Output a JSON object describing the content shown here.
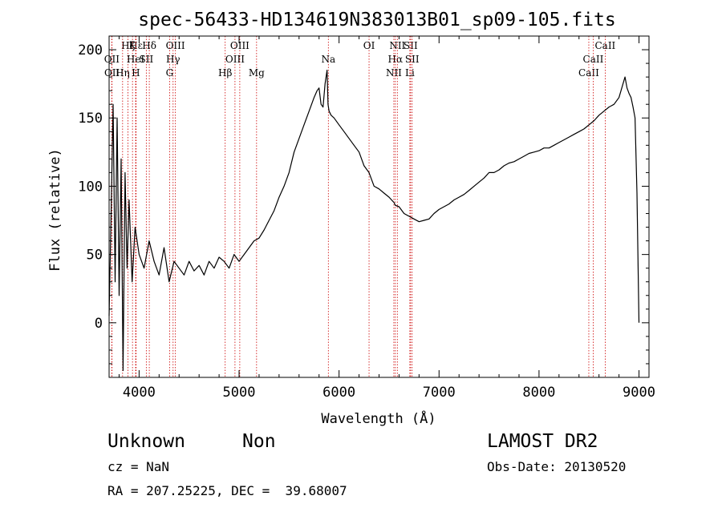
{
  "chart_data": {
    "type": "line",
    "title": "spec-56433-HD134619N383013B01_sp09-105.fits",
    "xlabel": "Wavelength (Å)",
    "ylabel": "Flux (relative)",
    "xlim": [
      3700,
      9100
    ],
    "ylim": [
      -40,
      210
    ],
    "xticks": [
      4000,
      5000,
      6000,
      7000,
      8000,
      9000
    ],
    "yticks": [
      0,
      50,
      100,
      150,
      200
    ],
    "grid": false,
    "line_color": "#000000",
    "marker_color": "#cc0000",
    "series": [
      {
        "x": [
          3700,
          3720,
          3740,
          3760,
          3780,
          3800,
          3820,
          3840,
          3860,
          3880,
          3900,
          3930,
          3960,
          4000,
          4050,
          4100,
          4150,
          4200,
          4250,
          4300,
          4350,
          4400,
          4450,
          4500,
          4550,
          4600,
          4650,
          4700,
          4750,
          4800,
          4850,
          4900,
          4950,
          5000,
          5050,
          5100,
          5150,
          5200,
          5250,
          5300,
          5350,
          5400,
          5450,
          5500,
          5550,
          5600,
          5650,
          5700,
          5750,
          5780,
          5800,
          5820,
          5840,
          5860,
          5880,
          5890,
          5900,
          5920,
          5950,
          6000,
          6050,
          6100,
          6150,
          6200,
          6250,
          6300,
          6350,
          6400,
          6450,
          6500,
          6550,
          6563,
          6600,
          6650,
          6700,
          6750,
          6800,
          6850,
          6900,
          6950,
          7000,
          7050,
          7100,
          7150,
          7200,
          7250,
          7300,
          7350,
          7400,
          7450,
          7500,
          7550,
          7600,
          7650,
          7700,
          7750,
          7800,
          7850,
          7900,
          7950,
          8000,
          8050,
          8100,
          8150,
          8200,
          8250,
          8300,
          8350,
          8400,
          8450,
          8500,
          8550,
          8600,
          8650,
          8700,
          8750,
          8800,
          8820,
          8840,
          8860,
          8880,
          8900,
          8920,
          8940,
          8960,
          8980,
          9000
        ],
        "y": [
          5,
          80,
          160,
          30,
          150,
          20,
          120,
          -35,
          110,
          40,
          90,
          30,
          70,
          50,
          40,
          60,
          45,
          35,
          55,
          30,
          45,
          40,
          35,
          45,
          38,
          42,
          35,
          45,
          40,
          48,
          45,
          40,
          50,
          45,
          50,
          55,
          60,
          62,
          68,
          75,
          82,
          92,
          100,
          110,
          125,
          135,
          145,
          155,
          165,
          170,
          172,
          160,
          158,
          175,
          185,
          160,
          155,
          152,
          150,
          145,
          140,
          135,
          130,
          125,
          115,
          110,
          100,
          98,
          95,
          92,
          88,
          86,
          85,
          80,
          78,
          76,
          74,
          75,
          76,
          80,
          83,
          85,
          87,
          90,
          92,
          94,
          97,
          100,
          103,
          106,
          110,
          110,
          112,
          115,
          117,
          118,
          120,
          122,
          124,
          125,
          126,
          128,
          128,
          130,
          132,
          134,
          136,
          138,
          140,
          142,
          145,
          148,
          152,
          155,
          158,
          160,
          165,
          170,
          175,
          180,
          172,
          168,
          165,
          158,
          150,
          95,
          0
        ]
      }
    ],
    "lines": [
      {
        "label": "Hα",
        "x": 6563,
        "row": 1
      },
      {
        "label": "Hβ",
        "x": 4861,
        "row": 2
      },
      {
        "label": "Hγ",
        "x": 4340,
        "row": 1
      },
      {
        "label": "Hδ",
        "x": 4102,
        "row": 0
      },
      {
        "label": "Hε",
        "x": 3970,
        "row": 0
      },
      {
        "label": "Hζ",
        "x": 3889,
        "row": 0
      },
      {
        "label": "Hη",
        "x": 3835,
        "row": 2
      },
      {
        "label": "K",
        "x": 3934,
        "row": 0
      },
      {
        "label": "H",
        "x": 3968,
        "row": 2
      },
      {
        "label": "G",
        "x": 4305,
        "row": 2
      },
      {
        "label": "Mg",
        "x": 5175,
        "row": 2
      },
      {
        "label": "Na",
        "x": 5893,
        "row": 1
      },
      {
        "label": "OII",
        "x": 3727,
        "row": 1
      },
      {
        "label": "OII",
        "x": 3729,
        "row": 2
      },
      {
        "label": "HeI",
        "x": 3965,
        "row": 1
      },
      {
        "label": "SII",
        "x": 4072,
        "row": 1
      },
      {
        "label": "OIII",
        "x": 4363,
        "row": 0
      },
      {
        "label": "OIII",
        "x": 4959,
        "row": 1
      },
      {
        "label": "OIII",
        "x": 5007,
        "row": 0
      },
      {
        "label": "OI",
        "x": 6300,
        "row": 0
      },
      {
        "label": "NII",
        "x": 6548,
        "row": 2
      },
      {
        "label": "NII",
        "x": 6583,
        "row": 0
      },
      {
        "label": "SII",
        "x": 6716,
        "row": 0
      },
      {
        "label": "SII",
        "x": 6731,
        "row": 1
      },
      {
        "label": "Li",
        "x": 6708,
        "row": 2
      },
      {
        "label": "CaII",
        "x": 8498,
        "row": 2
      },
      {
        "label": "CaII",
        "x": 8542,
        "row": 1
      },
      {
        "label": "CaII",
        "x": 8662,
        "row": 0
      }
    ]
  },
  "info": {
    "class": "Unknown",
    "subclass": "Non",
    "survey": "LAMOST DR2",
    "cz": "cz = NaN",
    "obs_date": "Obs-Date: 20130520",
    "coords": "RA = 207.25225, DEC =  39.68007"
  }
}
